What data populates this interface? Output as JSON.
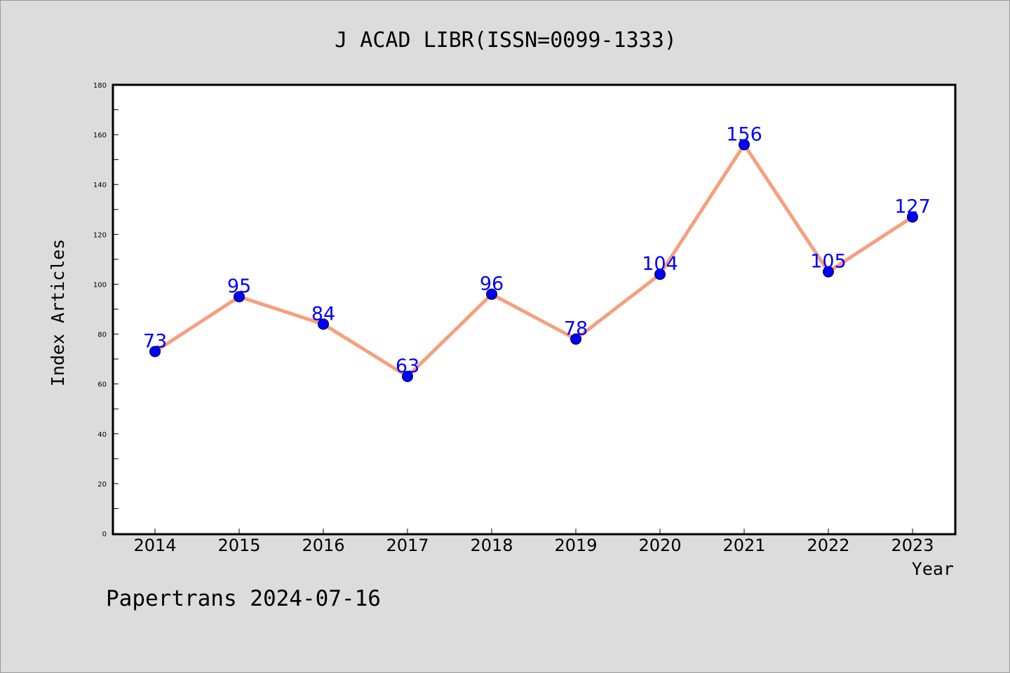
{
  "chart_data": {
    "type": "line",
    "title": "J ACAD LIBR(ISSN=0099-1333)",
    "xlabel": "Year",
    "ylabel": "Index Articles",
    "categories": [
      "2014",
      "2015",
      "2016",
      "2017",
      "2018",
      "2019",
      "2020",
      "2021",
      "2022",
      "2023"
    ],
    "series": [
      {
        "values": [
          73,
          95,
          84,
          63,
          96,
          78,
          104,
          156,
          105,
          127
        ]
      }
    ],
    "ylim": [
      0,
      180
    ],
    "yticks": [
      0,
      20,
      40,
      60,
      80,
      100,
      120,
      140,
      160,
      180
    ],
    "grid": false,
    "legend": "none",
    "data_labels": true
  },
  "footer": "Papertrans 2024-07-16",
  "colors": {
    "background": "#dcdcdc",
    "plot_background": "#ffffff",
    "line": "#f4a07e",
    "marker": "#0000ff",
    "data_label": "#0000ff"
  }
}
